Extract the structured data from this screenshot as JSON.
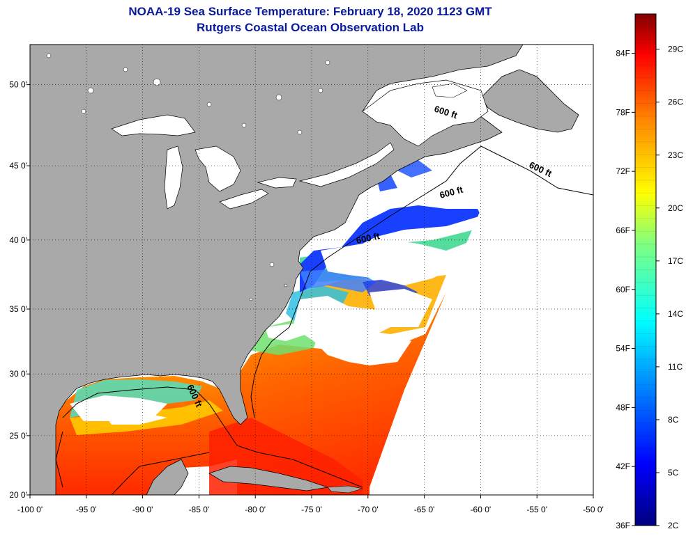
{
  "title": {
    "line1": "NOAA-19 Sea Surface Temperature:  February 18, 2020 1123 GMT",
    "line2": "Rutgers Coastal Ocean Observation Lab"
  },
  "map": {
    "lon_labels": [
      "-100 0'",
      "-95 0'",
      "-90 0'",
      "-85 0'",
      "-80 0'",
      "-75 0'",
      "-70 0'",
      "-65 0'",
      "-60 0'",
      "-55 0'",
      "-50 0'"
    ],
    "lat_labels": [
      "20 0'",
      "25 0'",
      "30 0'",
      "35 0'",
      "40 0'",
      "45 0'",
      "50 0'"
    ],
    "isobath_labels": [
      "600 ft",
      "600 ft",
      "600 ft",
      "600 ft",
      "600 ft"
    ],
    "colors": {
      "land": "#a9a9a9",
      "cloud": "#ffffff",
      "coast": "#000000"
    }
  },
  "colorbar": {
    "fahrenheit_labels": [
      "84F",
      "78F",
      "72F",
      "66F",
      "60F",
      "54F",
      "48F",
      "42F",
      "36F"
    ],
    "celsius_labels": [
      "29C",
      "26C",
      "23C",
      "20C",
      "17C",
      "14C",
      "11C",
      "8C",
      "5C",
      "2C"
    ],
    "range_f": [
      36,
      88
    ],
    "range_c": [
      2,
      31
    ]
  }
}
